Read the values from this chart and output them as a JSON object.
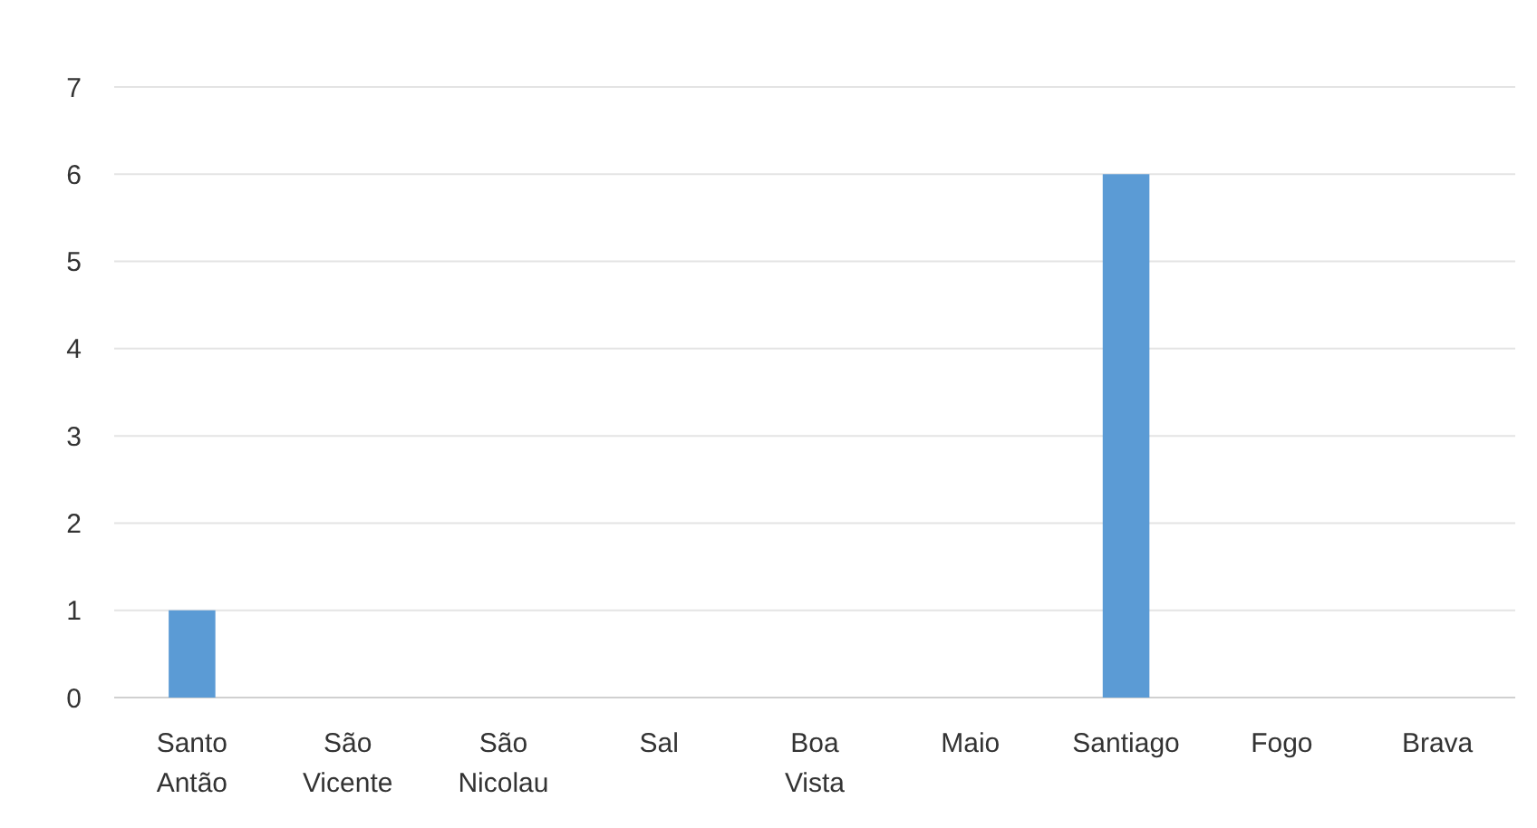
{
  "chart_data": {
    "type": "bar",
    "categories": [
      "Santo Antão",
      "São Vicente",
      "São Nicolau",
      "Sal",
      "Boa Vista",
      "Maio",
      "Santiago",
      "Fogo",
      "Brava"
    ],
    "values": [
      1,
      0,
      0,
      0,
      0,
      0,
      6,
      0,
      0
    ],
    "color": "#5b9bd5",
    "ylim": [
      0,
      7
    ],
    "yticks": [
      0,
      1,
      2,
      3,
      4,
      5,
      6,
      7
    ],
    "grid": "y"
  }
}
